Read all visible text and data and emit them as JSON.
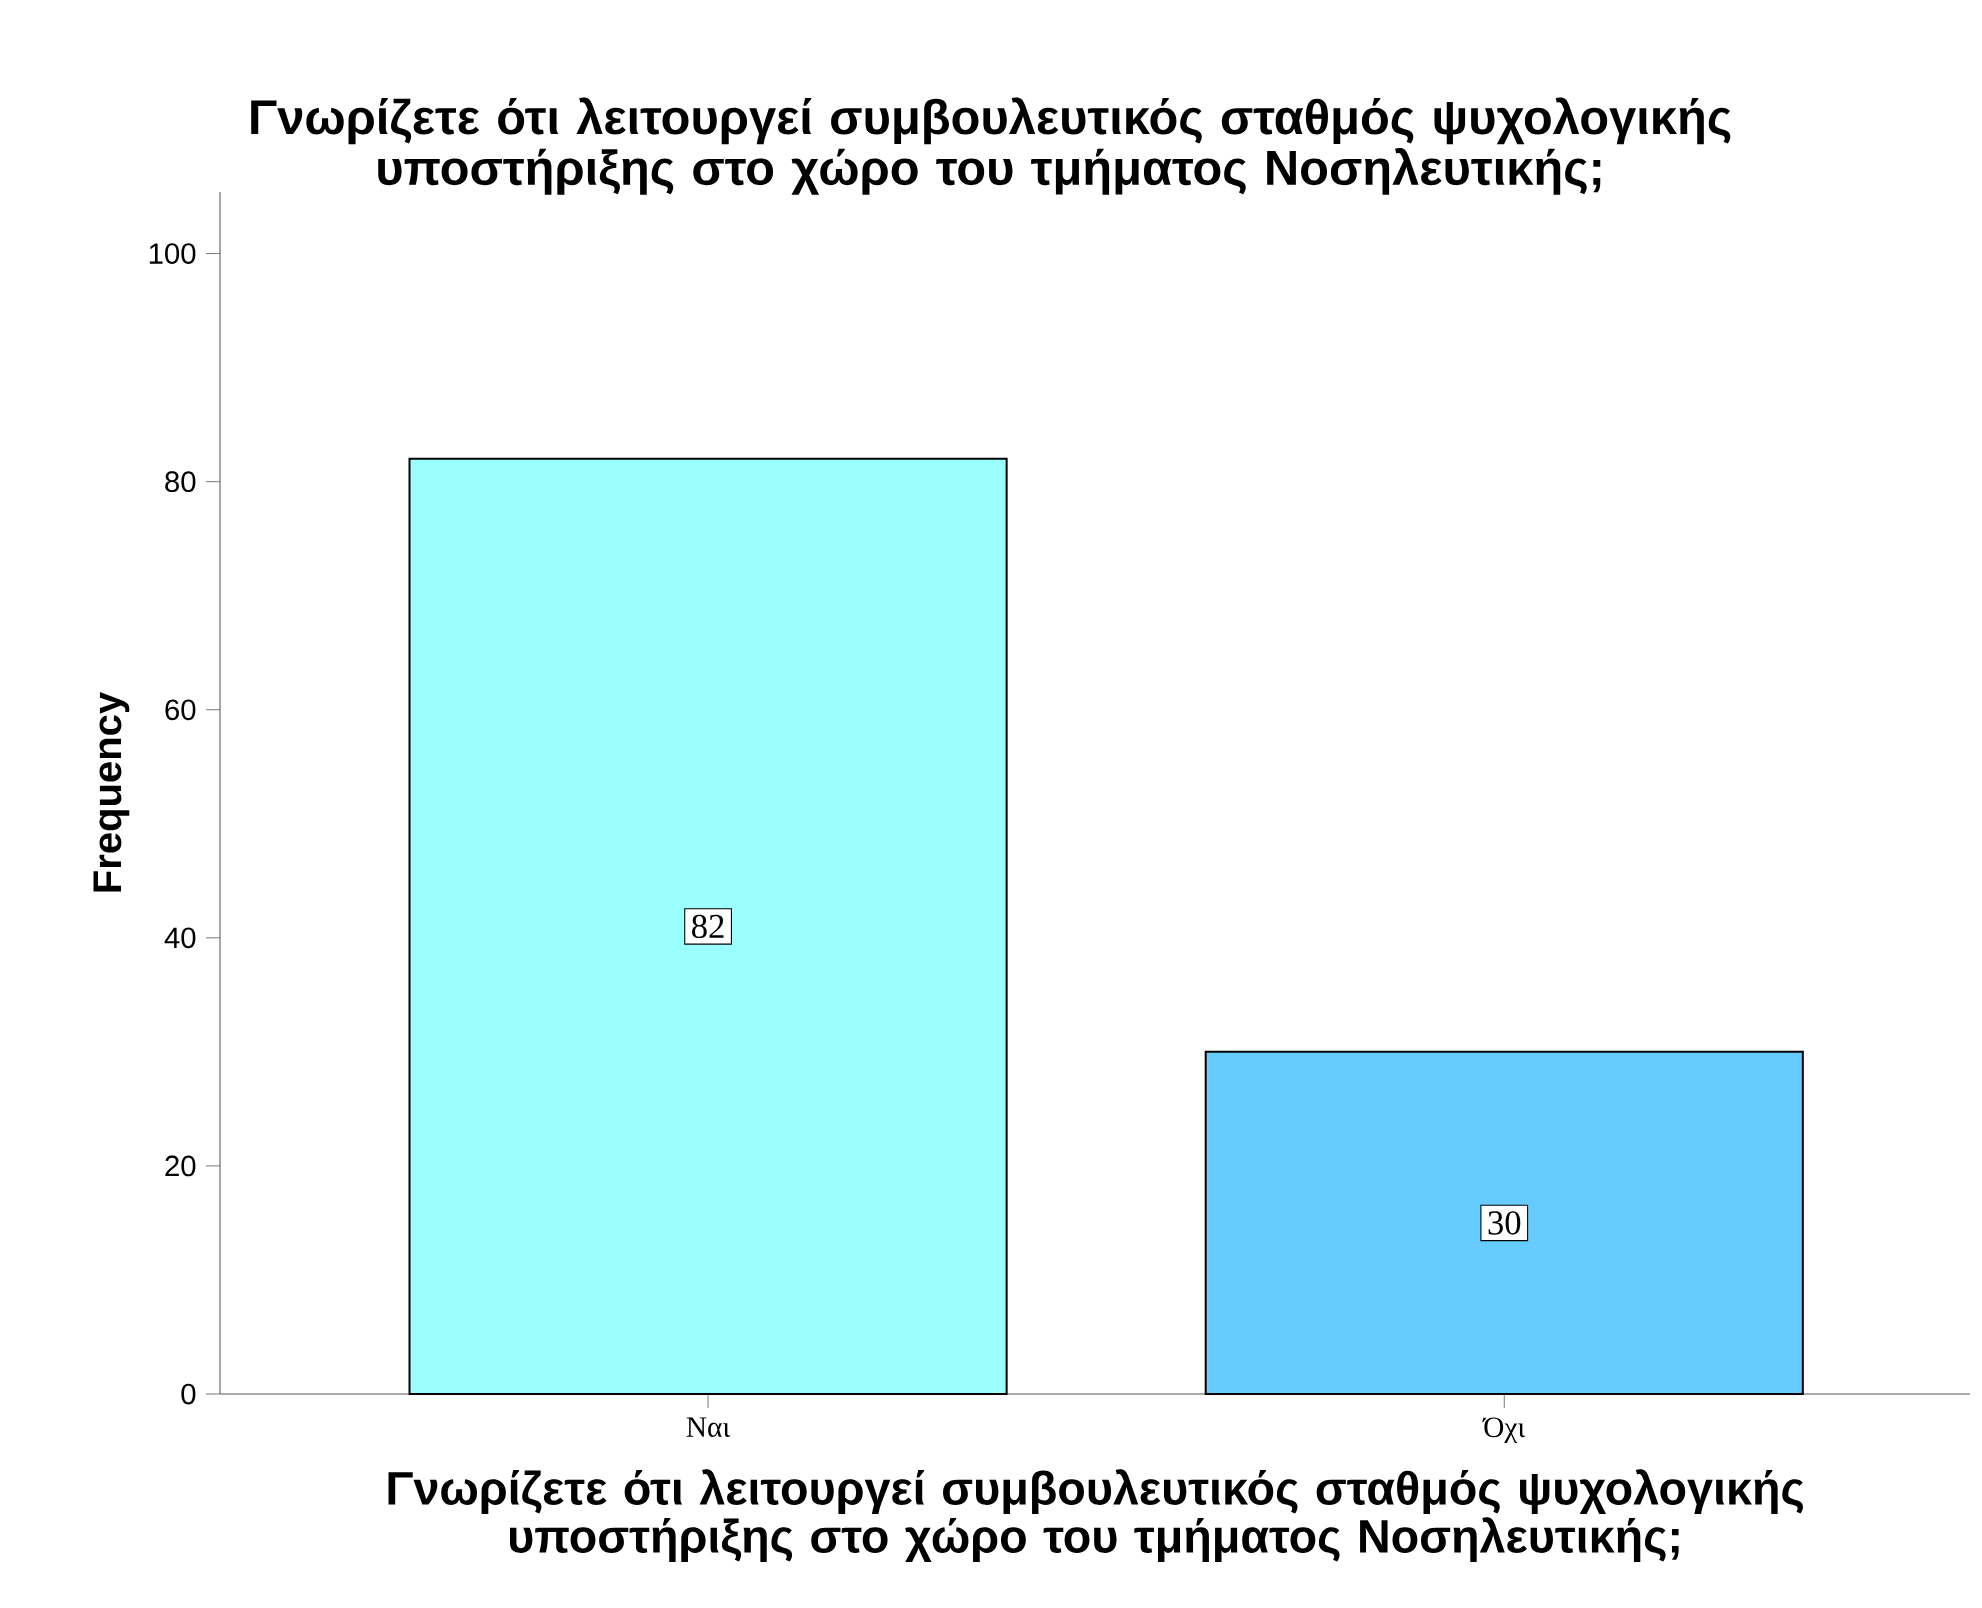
{
  "chart_data": {
    "type": "bar",
    "title": "Γνωρίζετε ότι λειτουργεί συμβουλευτικός σταθμός ψυχολογικής υποστήριξης στο χώρο του τμήματος Νοσηλευτικής;",
    "xlabel": "Γνωρίζετε ότι λειτουργεί συμβουλευτικός σταθμός ψυχολογικής υποστήριξης στο χώρο του τμήματος Νοσηλευτικής;",
    "ylabel": "Frequency",
    "categories": [
      "Ναι",
      "Όχι"
    ],
    "values": [
      82,
      30
    ],
    "colors": [
      "#99ffff",
      "#66ccff"
    ],
    "ylim": [
      0,
      105.4
    ],
    "yticks": [
      0,
      20,
      40,
      60,
      80,
      100
    ],
    "data_labels": true
  }
}
